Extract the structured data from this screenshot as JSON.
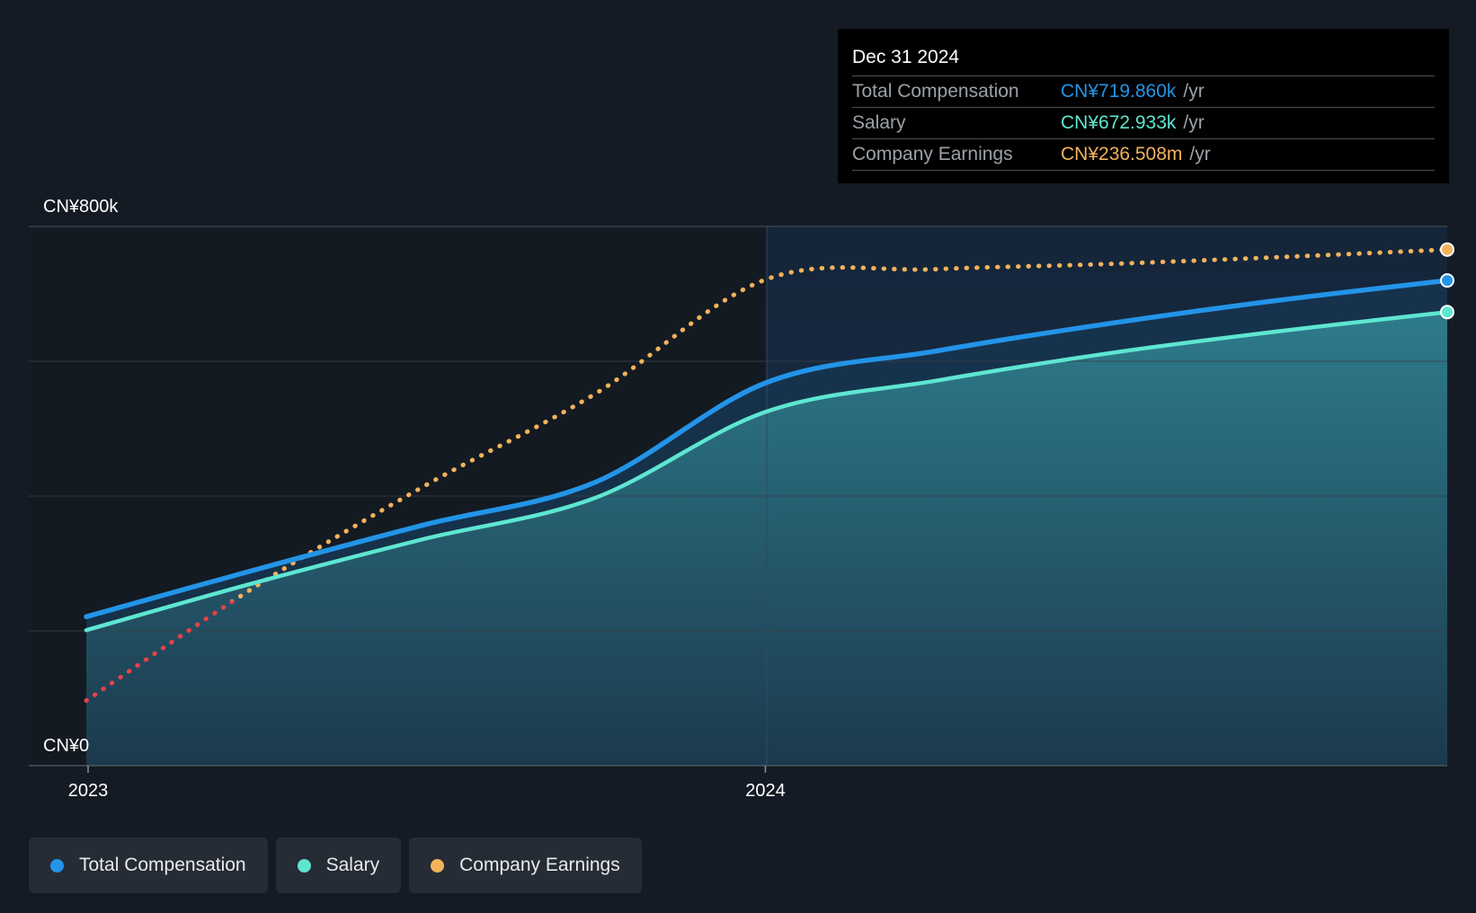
{
  "chart_data": {
    "type": "line",
    "y_axis": {
      "min_label": "CN¥0",
      "max_label": "CN¥800k",
      "ylim": [
        0,
        800000
      ]
    },
    "x_axis": {
      "tick_labels": [
        "2023",
        "2024"
      ],
      "xlim": [
        "2022-12-31",
        "2024-12-31"
      ]
    },
    "series": [
      {
        "name": "Total Compensation",
        "color": "#2394e8",
        "axis": "left",
        "points": [
          [
            "2022-12-31",
            221000
          ],
          [
            "2023-03-31",
            290000
          ],
          [
            "2023-06-30",
            357000
          ],
          [
            "2023-09-30",
            420000
          ],
          [
            "2023-12-31",
            568000
          ],
          [
            "2024-03-31",
            615000
          ],
          [
            "2024-06-30",
            655000
          ],
          [
            "2024-09-30",
            690000
          ],
          [
            "2024-12-31",
            719860
          ]
        ]
      },
      {
        "name": "Salary",
        "color": "#5ee6d1",
        "axis": "left",
        "points": [
          [
            "2022-12-31",
            201000
          ],
          [
            "2023-03-31",
            271000
          ],
          [
            "2023-06-30",
            336000
          ],
          [
            "2023-09-30",
            397000
          ],
          [
            "2023-12-31",
            525000
          ],
          [
            "2024-03-31",
            571000
          ],
          [
            "2024-06-30",
            611000
          ],
          [
            "2024-09-30",
            644000
          ],
          [
            "2024-12-31",
            672933
          ]
        ]
      },
      {
        "name": "Company Earnings",
        "color": "#f2b35a",
        "negative_color": "#e8404a",
        "axis": "secondary",
        "style": "dotted",
        "unit": "CN¥m",
        "ylim": [
          -65,
          250
        ],
        "points": [
          [
            "2022-12-31",
            -27
          ],
          [
            "2023-03-31",
            39
          ],
          [
            "2023-06-30",
            98
          ],
          [
            "2023-09-30",
            152
          ],
          [
            "2023-12-31",
            219
          ],
          [
            "2024-03-31",
            225
          ],
          [
            "2024-06-30",
            228
          ],
          [
            "2024-09-30",
            232
          ],
          [
            "2024-12-31",
            236.508
          ]
        ]
      }
    ],
    "grid": true
  },
  "tooltip": {
    "date": "Dec 31 2024",
    "rows": [
      {
        "label": "Total Compensation",
        "value": "CN¥719.860k",
        "unit": "/yr",
        "color": "#2394e8"
      },
      {
        "label": "Salary",
        "value": "CN¥672.933k",
        "unit": "/yr",
        "color": "#5ee6d1"
      },
      {
        "label": "Company Earnings",
        "value": "CN¥236.508m",
        "unit": "/yr",
        "color": "#f2b35a"
      }
    ]
  },
  "legend": [
    {
      "label": "Total Compensation",
      "color": "#2394e8"
    },
    {
      "label": "Salary",
      "color": "#5ee6d1"
    },
    {
      "label": "Company Earnings",
      "color": "#f2b35a"
    }
  ]
}
